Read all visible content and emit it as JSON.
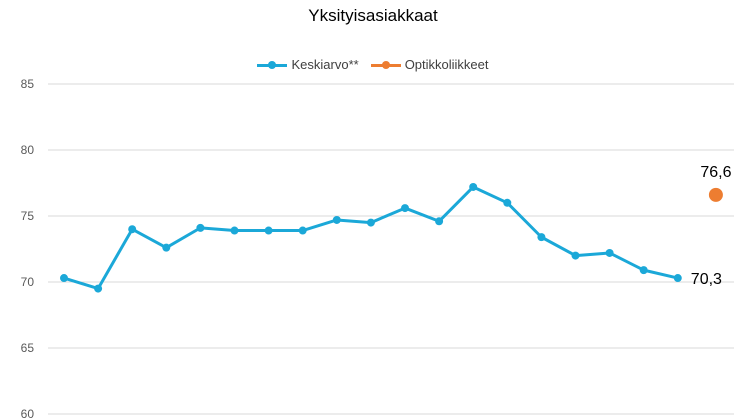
{
  "chart_data": {
    "type": "line",
    "title": "Yksityisasiakkaat",
    "xlabel": "",
    "ylabel": "",
    "ylim": [
      60,
      85
    ],
    "yticks": [
      60,
      65,
      70,
      75,
      80,
      85
    ],
    "grid": true,
    "legend_position": "top",
    "x": [
      1,
      2,
      3,
      4,
      5,
      6,
      7,
      8,
      9,
      10,
      11,
      12,
      13,
      14,
      15,
      16,
      17,
      18,
      19,
      20
    ],
    "series": [
      {
        "name": "Keskiarvo**",
        "color": "#1BA8D8",
        "values": [
          70.3,
          69.5,
          74.0,
          72.6,
          74.1,
          73.9,
          73.9,
          73.9,
          74.7,
          74.5,
          75.6,
          74.6,
          77.2,
          76.0,
          73.4,
          72.0,
          72.2,
          70.9,
          70.3,
          null
        ],
        "end_label": "70,3"
      },
      {
        "name": "Optikkoliikkeet",
        "color": "#ED7D31",
        "values": [
          null,
          null,
          null,
          null,
          null,
          null,
          null,
          null,
          null,
          null,
          null,
          null,
          null,
          null,
          null,
          null,
          null,
          null,
          null,
          76.6
        ],
        "end_label": "76,6"
      }
    ]
  }
}
